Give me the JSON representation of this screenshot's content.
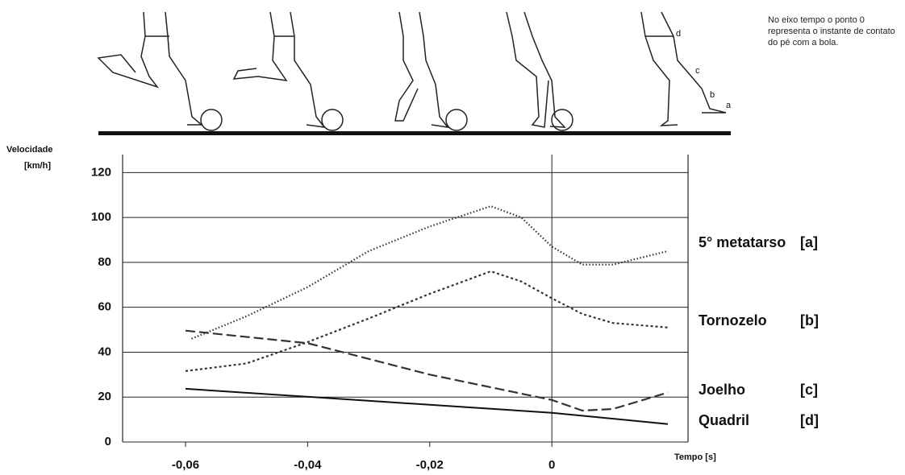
{
  "chart_data": {
    "type": "line",
    "ylabel": "Velocidade",
    "yunit": "[km/h]",
    "xlabel": "Tempo [s]",
    "note": "No eixo tempo o ponto 0 representa o instante de contato do pé com a bola.",
    "figure_labels": [
      "a",
      "b",
      "c",
      "d"
    ],
    "xlim": [
      -0.0703,
      0.0223
    ],
    "ylim": [
      0,
      128
    ],
    "xticks": [
      {
        "value": -0.06,
        "label": "-0,06"
      },
      {
        "value": -0.04,
        "label": "-0,04"
      },
      {
        "value": -0.02,
        "label": "-0,02"
      },
      0
    ],
    "yticks": [
      0,
      20,
      40,
      60,
      80,
      100,
      120
    ],
    "grid": true,
    "series": [
      {
        "name": "5° metatarso",
        "tag": "[a]",
        "color": "#333",
        "style": "dotted",
        "x": [
          -0.059,
          -0.05,
          -0.04,
          -0.03,
          -0.02,
          -0.01,
          -0.005,
          0,
          0.005,
          0.01,
          0.019
        ],
        "values": [
          46,
          56,
          69,
          85,
          96,
          105,
          100,
          87,
          79,
          79,
          85
        ]
      },
      {
        "name": "Tornozelo",
        "tag": "[b]",
        "color": "#333",
        "style": "short-dash",
        "x": [
          -0.06,
          -0.05,
          -0.04,
          -0.03,
          -0.02,
          -0.01,
          -0.005,
          0,
          0.005,
          0.01,
          0.019
        ],
        "values": [
          31.6,
          35,
          44.5,
          55,
          66,
          76,
          71.5,
          64,
          57,
          53,
          51
        ]
      },
      {
        "name": "Joelho",
        "tag": "[c]",
        "color": "#333",
        "style": "long-dash",
        "x": [
          -0.06,
          -0.04,
          -0.02,
          0,
          0.005,
          0.01,
          0.019
        ],
        "values": [
          49.6,
          44,
          30,
          18.7,
          14,
          14.7,
          22
        ]
      },
      {
        "name": "Quadril",
        "tag": "[d]",
        "color": "#111",
        "style": "solid",
        "x": [
          -0.06,
          0,
          0.019
        ],
        "values": [
          23.7,
          13,
          8
        ]
      }
    ]
  }
}
